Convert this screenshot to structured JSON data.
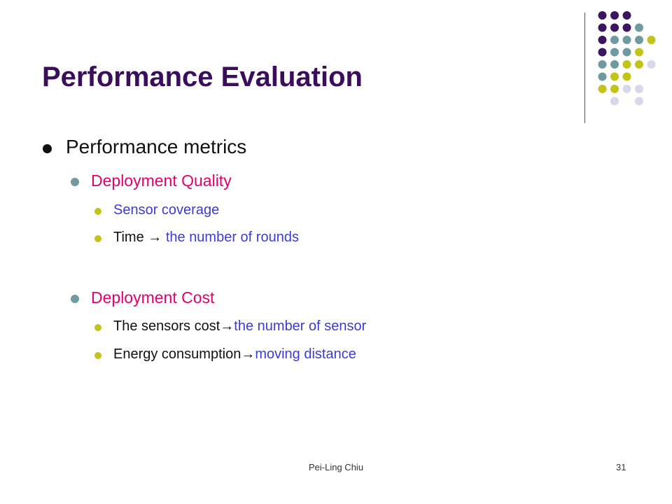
{
  "slide": {
    "title": "Performance Evaluation",
    "level1": {
      "text": "Performance metrics"
    },
    "quality": {
      "heading": "Deployment Quality",
      "items": [
        {
          "prefix": "",
          "highlight": "Sensor coverage"
        },
        {
          "prefix": "Time → ",
          "highlight": "the number of  rounds"
        }
      ]
    },
    "cost": {
      "heading": "Deployment Cost",
      "items": [
        {
          "prefix": "The sensors cost→",
          "highlight": "the number of sensor"
        },
        {
          "prefix": "Energy consumption→",
          "highlight": "moving distance"
        }
      ]
    },
    "footer": {
      "author": "Pei-Ling Chiu",
      "page": "31"
    }
  },
  "colors": {
    "title": "#3b0e5c",
    "level2": "#e6006e",
    "highlight": "#3b3bd6",
    "dot_purple": "#3b1560",
    "dot_teal": "#6f9aa0",
    "dot_lime": "#c3c41a",
    "dot_lavender": "#d8d8ea"
  }
}
